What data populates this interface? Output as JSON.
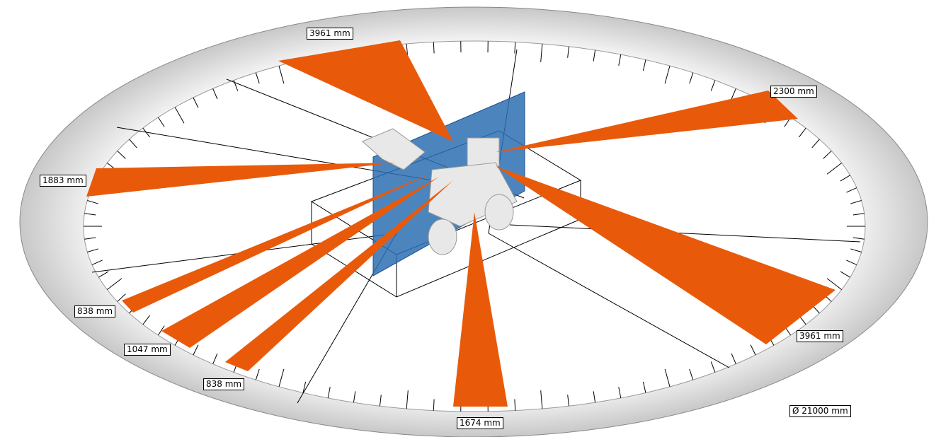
{
  "labels": [
    {
      "text": "3961 mm"
    },
    {
      "text": "2300 mm"
    },
    {
      "text": "1883 mm"
    },
    {
      "text": "3961 mm"
    },
    {
      "text": "838 mm"
    },
    {
      "text": "1047 mm"
    },
    {
      "text": "838 mm"
    },
    {
      "text": "1674 mm"
    }
  ],
  "diameter": "Ø 21000 mm"
}
